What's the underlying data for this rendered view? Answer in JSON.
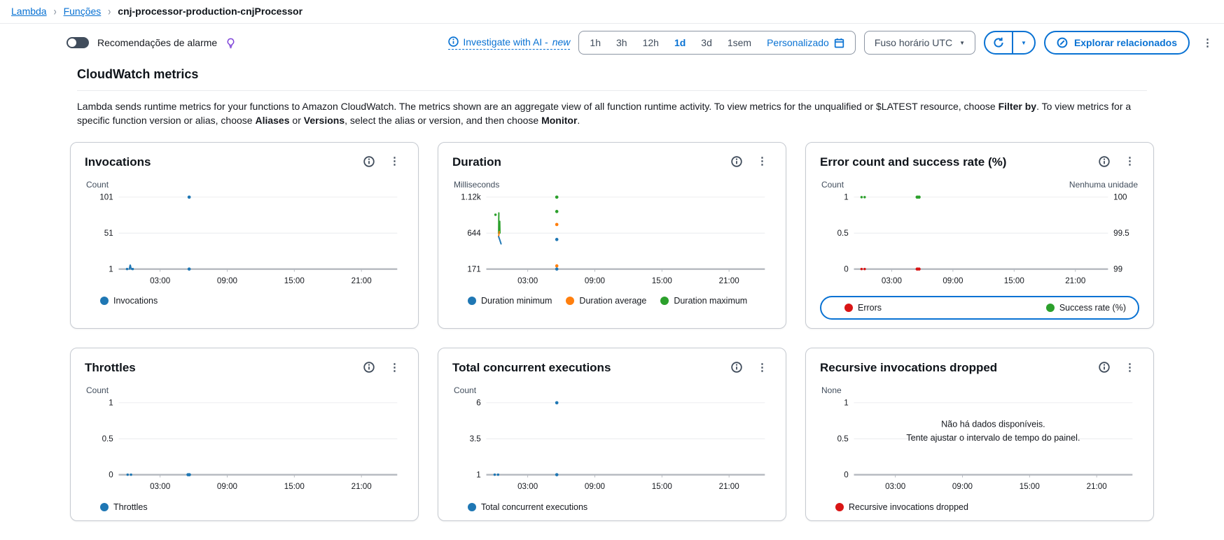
{
  "breadcrumb": [
    {
      "label": "Lambda",
      "type": "link"
    },
    {
      "label": "Funções",
      "type": "link"
    },
    {
      "label": "cnj-processor-production-cnjProcessor",
      "type": "current"
    }
  ],
  "toolbar": {
    "alarm_toggle_label": "Recomendações de alarme",
    "investigate_label": "Investigate with AI -",
    "investigate_new_tag": "new",
    "time_ranges": [
      "1h",
      "3h",
      "12h",
      "1d",
      "3d",
      "1sem"
    ],
    "time_selected": "1d",
    "custom_range_label": "Personalizado",
    "timezone_label": "Fuso horário UTC",
    "explore_label": "Explorar relacionados"
  },
  "section": {
    "title": "CloudWatch metrics",
    "description": [
      {
        "text": "Lambda sends runtime metrics for your functions to Amazon CloudWatch. The metrics shown are an aggregate view of all function runtime activity. To view metrics for the unqualified or $LATEST resource, choose "
      },
      {
        "text": "Filter by",
        "bold": true
      },
      {
        "text": ". To view metrics for a specific function version or alias, choose "
      },
      {
        "text": "Aliases",
        "bold": true
      },
      {
        "text": " or "
      },
      {
        "text": "Versions",
        "bold": true
      },
      {
        "text": ", select the alias or version, and then choose "
      },
      {
        "text": "Monitor",
        "bold": true
      },
      {
        "text": "."
      }
    ]
  },
  "colors": {
    "accent": "#0972d3",
    "series_blue": "#1f77b4",
    "series_orange": "#ff7f0e",
    "series_green": "#2ca02c",
    "series_red": "#d91515",
    "bulb_purple": "#7d42d8"
  },
  "icons": {
    "kebab": "⋮",
    "caret": "▼",
    "breadcrumb_separator": "›"
  },
  "chart_data": [
    {
      "type": "scatter",
      "title": "Invocations",
      "unit_left": "Count",
      "unit_right": "",
      "ylim": [
        1,
        101
      ],
      "yticks": [
        {
          "v": 101,
          "l": "101"
        },
        {
          "v": 51,
          "l": "51"
        },
        {
          "v": 1,
          "l": "1"
        }
      ],
      "xlim": [
        -0.7,
        24.2
      ],
      "xticks": [
        {
          "t": 3,
          "l": "03:00"
        },
        {
          "t": 9,
          "l": "09:00"
        },
        {
          "t": 15,
          "l": "15:00"
        },
        {
          "t": 21,
          "l": "21:00"
        }
      ],
      "segments": [
        {
          "c": "#1f77b4",
          "pts": [
            [
              0.25,
              1
            ],
            [
              0.33,
              7
            ],
            [
              0.42,
              1
            ]
          ]
        }
      ],
      "points": [
        {
          "t": 0.05,
          "v": 1,
          "c": "#1f77b4",
          "r": 1.8
        },
        {
          "t": 0.55,
          "v": 1,
          "c": "#1f77b4",
          "r": 1.8
        },
        {
          "t": 5.6,
          "v": 101,
          "c": "#1f77b4"
        },
        {
          "t": 5.6,
          "v": 1,
          "c": "#1f77b4"
        }
      ],
      "legend": [
        {
          "label": "Invocations",
          "color": "#1f77b4"
        }
      ]
    },
    {
      "type": "scatter",
      "title": "Duration",
      "unit_left": "Milliseconds",
      "unit_right": "",
      "ylim": [
        171,
        1117
      ],
      "yticks": [
        {
          "v": 1117,
          "l": "1.12k"
        },
        {
          "v": 644,
          "l": "644"
        },
        {
          "v": 171,
          "l": "171"
        }
      ],
      "xlim": [
        -0.7,
        24.2
      ],
      "xticks": [
        {
          "t": 3,
          "l": "03:00"
        },
        {
          "t": 9,
          "l": "09:00"
        },
        {
          "t": 15,
          "l": "15:00"
        },
        {
          "t": 21,
          "l": "21:00"
        }
      ],
      "segments": [
        {
          "c": "#2ca02c",
          "pts": [
            [
              0.4,
              640
            ],
            [
              0.42,
              910
            ]
          ]
        },
        {
          "c": "#2ca02c",
          "pts": [
            [
              0.52,
              645
            ],
            [
              0.5,
              800
            ]
          ]
        },
        {
          "c": "#ff7f0e",
          "pts": [
            [
              0.4,
              600
            ],
            [
              0.46,
              665
            ]
          ]
        },
        {
          "c": "#1f77b4",
          "pts": [
            [
              0.4,
              598
            ],
            [
              0.5,
              556
            ],
            [
              0.62,
              502
            ]
          ]
        }
      ],
      "points": [
        {
          "t": 0.12,
          "v": 885,
          "c": "#2ca02c",
          "r": 1.8
        },
        {
          "t": 5.6,
          "v": 1117,
          "c": "#2ca02c"
        },
        {
          "t": 5.6,
          "v": 928,
          "c": "#2ca02c"
        },
        {
          "t": 5.6,
          "v": 757,
          "c": "#ff7f0e"
        },
        {
          "t": 5.6,
          "v": 560,
          "c": "#1f77b4"
        },
        {
          "t": 5.6,
          "v": 213,
          "c": "#ff7f0e"
        },
        {
          "t": 5.6,
          "v": 171,
          "c": "#1f77b4"
        }
      ],
      "legend": [
        {
          "label": "Duration minimum",
          "color": "#1f77b4"
        },
        {
          "label": "Duration average",
          "color": "#ff7f0e"
        },
        {
          "label": "Duration maximum",
          "color": "#2ca02c"
        }
      ]
    },
    {
      "type": "scatter",
      "title": "Error count and success rate (%)",
      "unit_left": "Count",
      "unit_right": "Nenhuma unidade",
      "ylim": [
        0,
        1
      ],
      "yticks": [
        {
          "v": 1,
          "l": "1"
        },
        {
          "v": 0.5,
          "l": "0.5"
        },
        {
          "v": 0,
          "l": "0"
        }
      ],
      "ylim_right": [
        99,
        100
      ],
      "yticks_right": [
        {
          "v": 100,
          "l": "100"
        },
        {
          "v": 99.5,
          "l": "99.5"
        },
        {
          "v": 99,
          "l": "99"
        }
      ],
      "xlim": [
        -0.7,
        24.2
      ],
      "xticks": [
        {
          "t": 3,
          "l": "03:00"
        },
        {
          "t": 9,
          "l": "09:00"
        },
        {
          "t": 15,
          "l": "15:00"
        },
        {
          "t": 21,
          "l": "21:00"
        }
      ],
      "points": [
        {
          "t": 0.05,
          "v": 100,
          "c": "#2ca02c",
          "axis": "right",
          "r": 1.8
        },
        {
          "t": 0.35,
          "v": 100,
          "c": "#2ca02c",
          "axis": "right",
          "r": 1.8
        },
        {
          "t": 5.5,
          "v": 100,
          "c": "#2ca02c",
          "axis": "right"
        },
        {
          "t": 5.68,
          "v": 100,
          "c": "#2ca02c",
          "axis": "right"
        },
        {
          "t": 0.05,
          "v": 0,
          "c": "#d91515",
          "r": 1.8
        },
        {
          "t": 0.35,
          "v": 0,
          "c": "#d91515",
          "r": 1.8
        },
        {
          "t": 5.5,
          "v": 0,
          "c": "#d91515"
        },
        {
          "t": 5.68,
          "v": 0,
          "c": "#d91515"
        }
      ],
      "legend": [
        {
          "label": "Errors",
          "color": "#d91515"
        },
        {
          "label": "Success rate (%)",
          "color": "#2ca02c"
        }
      ],
      "legend_layout": "split"
    },
    {
      "type": "scatter",
      "title": "Throttles",
      "unit_left": "Count",
      "unit_right": "",
      "ylim": [
        0,
        1
      ],
      "yticks": [
        {
          "v": 1,
          "l": "1"
        },
        {
          "v": 0.5,
          "l": "0.5"
        },
        {
          "v": 0,
          "l": "0"
        }
      ],
      "xlim": [
        -0.7,
        24.2
      ],
      "xticks": [
        {
          "t": 3,
          "l": "03:00"
        },
        {
          "t": 9,
          "l": "09:00"
        },
        {
          "t": 15,
          "l": "15:00"
        },
        {
          "t": 21,
          "l": "21:00"
        }
      ],
      "points": [
        {
          "t": 0.1,
          "v": 0,
          "c": "#1f77b4",
          "r": 1.8
        },
        {
          "t": 0.4,
          "v": 0,
          "c": "#1f77b4",
          "r": 1.8
        },
        {
          "t": 5.5,
          "v": 0,
          "c": "#1f77b4"
        },
        {
          "t": 5.62,
          "v": 0,
          "c": "#1f77b4"
        }
      ],
      "legend": [
        {
          "label": "Throttles",
          "color": "#1f77b4"
        }
      ]
    },
    {
      "type": "scatter",
      "title": "Total concurrent executions",
      "unit_left": "Count",
      "unit_right": "",
      "ylim": [
        1,
        6
      ],
      "yticks": [
        {
          "v": 6,
          "l": "6"
        },
        {
          "v": 3.5,
          "l": "3.5"
        },
        {
          "v": 1,
          "l": "1"
        }
      ],
      "xlim": [
        -0.7,
        24.2
      ],
      "xticks": [
        {
          "t": 3,
          "l": "03:00"
        },
        {
          "t": 9,
          "l": "09:00"
        },
        {
          "t": 15,
          "l": "15:00"
        },
        {
          "t": 21,
          "l": "21:00"
        }
      ],
      "points": [
        {
          "t": 0.05,
          "v": 1,
          "c": "#1f77b4",
          "r": 1.8
        },
        {
          "t": 0.35,
          "v": 1,
          "c": "#1f77b4",
          "r": 1.8
        },
        {
          "t": 5.6,
          "v": 6,
          "c": "#1f77b4"
        },
        {
          "t": 5.6,
          "v": 1,
          "c": "#1f77b4"
        }
      ],
      "legend": [
        {
          "label": "Total concurrent executions",
          "color": "#1f77b4"
        }
      ]
    },
    {
      "type": "scatter",
      "title": "Recursive invocations dropped",
      "unit_left": "None",
      "unit_right": "",
      "ylim": [
        0,
        1
      ],
      "yticks": [
        {
          "v": 1,
          "l": "1"
        },
        {
          "v": 0.5,
          "l": "0.5"
        },
        {
          "v": 0,
          "l": "0"
        }
      ],
      "xlim": [
        -0.7,
        24.2
      ],
      "xticks": [
        {
          "t": 3,
          "l": "03:00"
        },
        {
          "t": 9,
          "l": "09:00"
        },
        {
          "t": 15,
          "l": "15:00"
        },
        {
          "t": 21,
          "l": "21:00"
        }
      ],
      "points": [],
      "empty_lines": [
        "Não há dados disponíveis.",
        "Tente ajustar o intervalo de tempo do painel."
      ],
      "legend": [
        {
          "label": "Recursive invocations dropped",
          "color": "#d91515"
        }
      ]
    }
  ]
}
